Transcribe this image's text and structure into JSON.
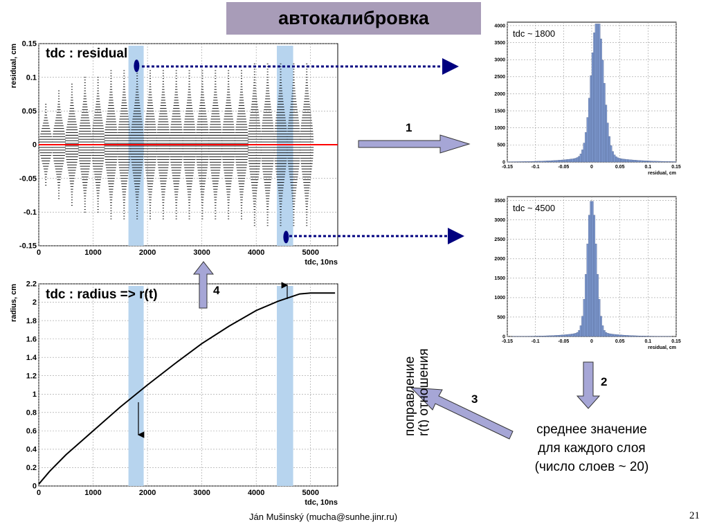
{
  "slide": {
    "title": "автокалибровка",
    "footer": "Ján Mušinský (mucha@sunhe.jinr.ru)",
    "page_number": "21",
    "summary_lines": [
      "среднее значение",
      "для каждого слоя",
      "(число слоев ~ 20)"
    ],
    "vertical_text": [
      "поправление",
      "r(t)  отношения"
    ]
  },
  "colors": {
    "highlight_band": "#b7d4ee",
    "arrow_fill": "#a6a6d6",
    "zero_line": "#ff0000",
    "dot_marker": "#00007f",
    "histogram_fill": "#7b96cc",
    "title_bg": "#a89cb8"
  },
  "steps": {
    "step1": "1",
    "step2": "2",
    "step3": "3",
    "step4": "4"
  },
  "chart_data": [
    {
      "id": "residual",
      "type": "scatter",
      "title": "tdc : residual",
      "xlabel": "tdc, 10ns",
      "ylabel": "residual, cm",
      "xlim": [
        0,
        5500
      ],
      "ylim": [
        -0.15,
        0.15
      ],
      "xticks": [
        "0",
        "1000",
        "2000",
        "3000",
        "4000",
        "5000"
      ],
      "yticks": [
        "0.15",
        "0.1",
        "0.05",
        "0",
        "-0.05",
        "-0.1",
        "-0.15"
      ],
      "grid": true,
      "zero_line": 0,
      "highlight_bands": [
        [
          1650,
          1930
        ],
        [
          4380,
          4680
        ]
      ],
      "markers": [
        {
          "x": 1800,
          "y": 0.117
        },
        {
          "x": 4550,
          "y": -0.137
        }
      ],
      "columns_x": [
        130,
        370,
        610,
        850,
        1090,
        1330,
        1570,
        1810,
        2050,
        2290,
        2530,
        2770,
        3010,
        3250,
        3490,
        3730,
        3970,
        4210,
        4450,
        4690,
        4930
      ],
      "column_spread": [
        0.06,
        0.08,
        0.09,
        0.1,
        0.1,
        0.11,
        0.11,
        0.11,
        0.11,
        0.11,
        0.11,
        0.11,
        0.11,
        0.11,
        0.11,
        0.11,
        0.12,
        0.12,
        0.12,
        0.12,
        0.12
      ]
    },
    {
      "id": "radius",
      "type": "line",
      "title": "tdc : radius  => r(t)",
      "xlabel": "tdc, 10ns",
      "ylabel": "radius, cm",
      "xlim": [
        0,
        5500
      ],
      "ylim": [
        0,
        2.2
      ],
      "xticks": [
        "0",
        "1000",
        "2000",
        "3000",
        "4000",
        "5000"
      ],
      "yticks": [
        "2.2",
        "2",
        "1.8",
        "1.6",
        "1.4",
        "1.2",
        "1",
        "0.8",
        "0.6",
        "0.4",
        "0.2",
        "0"
      ],
      "grid": true,
      "highlight_bands": [
        [
          1650,
          1930
        ],
        [
          4380,
          4680
        ]
      ],
      "x": [
        0,
        200,
        500,
        1000,
        1500,
        2000,
        2500,
        3000,
        3500,
        4000,
        4400,
        4800,
        5000,
        5450
      ],
      "y": [
        0.02,
        0.16,
        0.34,
        0.6,
        0.86,
        1.1,
        1.33,
        1.55,
        1.74,
        1.91,
        2.01,
        2.09,
        2.1,
        2.1
      ]
    },
    {
      "id": "hist1800",
      "type": "bar",
      "title": "tdc ~ 1800",
      "xlabel": "residual, cm",
      "xlim": [
        -0.15,
        0.15
      ],
      "ylim": [
        0,
        4100
      ],
      "xticks": [
        "-0.15",
        "-0.1",
        "-0.05",
        "0",
        "0.05",
        "0.1",
        "0.15"
      ],
      "yticks": [
        "4000",
        "3500",
        "3000",
        "2500",
        "2000",
        "1500",
        "1000",
        "500",
        "0"
      ],
      "grid": true,
      "center": 0.01,
      "peak": 4050,
      "sigma": 0.011,
      "tail": 0.045,
      "tail_frac": 0.06,
      "bin_width": 0.003
    },
    {
      "id": "hist4500",
      "type": "bar",
      "title": "tdc ~ 4500",
      "xlabel": "residual, cm",
      "xlim": [
        -0.15,
        0.15
      ],
      "ylim": [
        0,
        3600
      ],
      "xticks": [
        "-0.15",
        "-0.1",
        "-0.05",
        "0",
        "0.05",
        "0.1",
        "0.15"
      ],
      "yticks": [
        "3500",
        "3000",
        "2500",
        "2000",
        "1500",
        "1000",
        "500",
        "0"
      ],
      "grid": true,
      "center": 0.0,
      "peak": 3480,
      "sigma": 0.008,
      "tail": 0.035,
      "tail_frac": 0.05,
      "bin_width": 0.003
    }
  ]
}
